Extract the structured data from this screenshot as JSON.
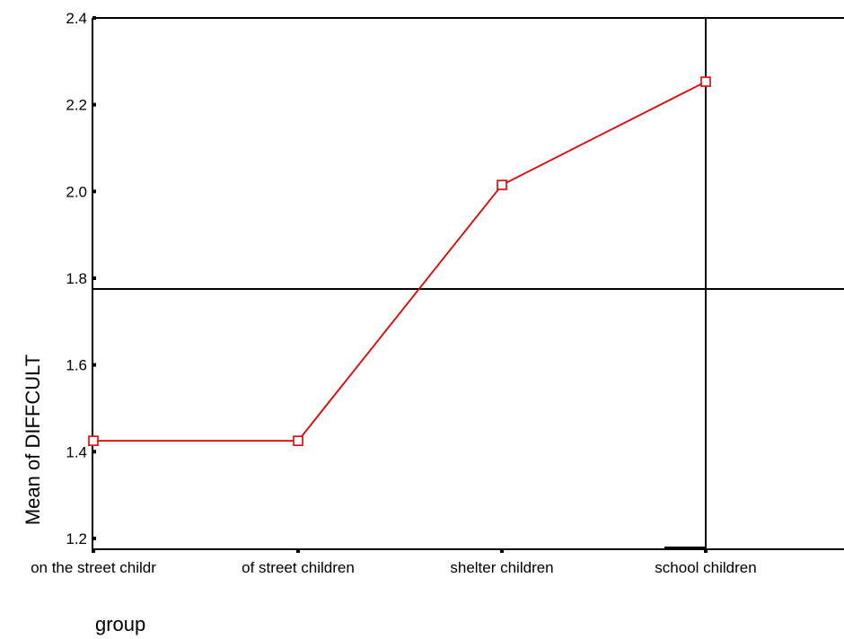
{
  "chart_data": {
    "type": "line",
    "title": "",
    "xlabel": "group",
    "ylabel": "Mean of DIFFCULT",
    "categories": [
      "on the street childr",
      "of street children",
      "shelter children",
      "school children"
    ],
    "series": [
      {
        "values": [
          1.425,
          1.425,
          2.015,
          2.253
        ],
        "color": "#e00000",
        "marker": "open-square"
      }
    ],
    "yticks": [
      1.2,
      1.4,
      1.6,
      1.8,
      2.0,
      2.2,
      2.4
    ],
    "ytick_labels": [
      "1.2",
      "1.4",
      "1.6",
      "1.8",
      "2.0",
      "2.2",
      "2.4"
    ],
    "ylim": [
      1.175,
      2.4
    ],
    "reference_lines": {
      "horizontal_y": 1.775,
      "vertical_category": "school children"
    },
    "grid": false,
    "legend": "none"
  }
}
